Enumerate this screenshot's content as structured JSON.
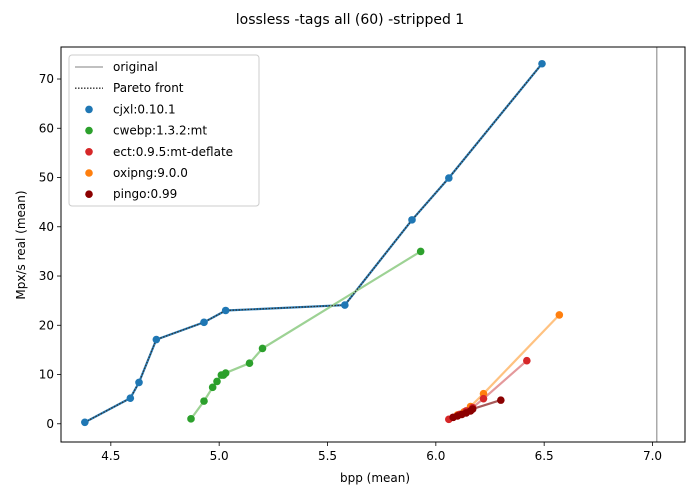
{
  "chart_data": {
    "type": "scatter",
    "title": "lossless -tags all (60) -stripped 1",
    "xlabel": "bpp (mean)",
    "ylabel": "Mpx/s real (mean)",
    "xlim": [
      4.27,
      7.15
    ],
    "ylim": [
      -3.7,
      76.5
    ],
    "xticks": [
      4.5,
      5.0,
      5.5,
      6.0,
      6.5,
      7.0
    ],
    "xtick_labels": [
      "4.5",
      "5.0",
      "5.5",
      "6.0",
      "6.5",
      "7.0"
    ],
    "yticks": [
      0,
      10,
      20,
      30,
      40,
      50,
      60,
      70
    ],
    "ytick_labels": [
      "0",
      "10",
      "20",
      "30",
      "40",
      "50",
      "60",
      "70"
    ],
    "grid": false,
    "legend_position": "upper-left",
    "original": {
      "label": "original",
      "x": 7.02,
      "color": "#808080"
    },
    "pareto": {
      "label": "Pareto front",
      "color": "#333333",
      "points": [
        [
          4.38,
          0.3
        ],
        [
          4.59,
          5.2
        ],
        [
          4.63,
          8.4
        ],
        [
          4.71,
          17.1
        ],
        [
          4.93,
          20.6
        ],
        [
          5.03,
          23.0
        ],
        [
          5.58,
          24.1
        ],
        [
          5.89,
          41.4
        ],
        [
          6.06,
          49.9
        ],
        [
          6.49,
          73.1
        ]
      ]
    },
    "series": [
      {
        "name": "cjxl:0.10.1",
        "color": "#1f77b4",
        "line_color": "#1f77b4",
        "points": [
          [
            4.38,
            0.3
          ],
          [
            4.59,
            5.2
          ],
          [
            4.63,
            8.4
          ],
          [
            4.71,
            17.1
          ],
          [
            4.93,
            20.6
          ],
          [
            5.03,
            23.0
          ],
          [
            5.58,
            24.1
          ],
          [
            5.89,
            41.4
          ],
          [
            6.06,
            49.9
          ],
          [
            6.49,
            73.1
          ]
        ]
      },
      {
        "name": "cwebp:1.3.2:mt",
        "color": "#2ca02c",
        "line_color": "#98d08e",
        "points": [
          [
            4.87,
            1.0
          ],
          [
            4.93,
            4.6
          ],
          [
            4.97,
            7.4
          ],
          [
            4.99,
            8.6
          ],
          [
            5.01,
            9.9
          ],
          [
            5.02,
            9.9
          ],
          [
            5.03,
            10.3
          ],
          [
            5.14,
            12.3
          ],
          [
            5.2,
            15.3
          ],
          [
            5.93,
            35.0
          ]
        ]
      },
      {
        "name": "oxipng:9.0.0",
        "color": "#ff7f0e",
        "line_color": "#ffbf7a",
        "points": [
          [
            6.1,
            1.8
          ],
          [
            6.13,
            2.4
          ],
          [
            6.16,
            3.5
          ],
          [
            6.22,
            6.1
          ],
          [
            6.57,
            22.1
          ]
        ]
      },
      {
        "name": "ect:0.9.5:mt-deflate",
        "color": "#d62728",
        "line_color": "#e39496",
        "points": [
          [
            6.06,
            0.9
          ],
          [
            6.08,
            1.3
          ],
          [
            6.11,
            1.9
          ],
          [
            6.14,
            2.6
          ],
          [
            6.17,
            3.3
          ],
          [
            6.22,
            5.1
          ],
          [
            6.42,
            12.8
          ]
        ]
      },
      {
        "name": "pingo:0.99",
        "color": "#8b0000",
        "line_color": "#a35050",
        "points": [
          [
            6.08,
            1.3
          ],
          [
            6.1,
            1.6
          ],
          [
            6.12,
            1.9
          ],
          [
            6.14,
            2.2
          ],
          [
            6.16,
            2.6
          ],
          [
            6.17,
            3.0
          ],
          [
            6.3,
            4.8
          ]
        ]
      }
    ],
    "legend_order": [
      "cjxl:0.10.1",
      "cwebp:1.3.2:mt",
      "ect:0.9.5:mt-deflate",
      "oxipng:9.0.0",
      "pingo:0.99"
    ]
  }
}
